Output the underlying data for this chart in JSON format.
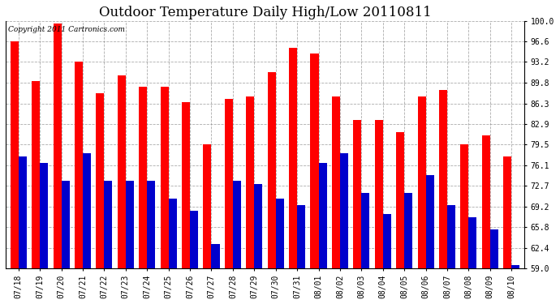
{
  "title": "Outdoor Temperature Daily High/Low 20110811",
  "copyright_text": "Copyright 2011 Cartronics.com",
  "dates": [
    "07/18",
    "07/19",
    "07/20",
    "07/21",
    "07/22",
    "07/23",
    "07/24",
    "07/25",
    "07/26",
    "07/27",
    "07/28",
    "07/29",
    "07/30",
    "07/31",
    "08/01",
    "08/02",
    "08/03",
    "08/04",
    "08/05",
    "08/06",
    "08/07",
    "08/08",
    "08/09",
    "08/10"
  ],
  "highs": [
    96.6,
    90.0,
    99.5,
    93.2,
    88.0,
    91.0,
    89.0,
    89.0,
    86.5,
    79.5,
    87.0,
    87.5,
    91.5,
    95.5,
    94.5,
    87.5,
    83.5,
    83.5,
    81.5,
    87.5,
    88.5,
    79.5,
    81.0,
    77.5
  ],
  "lows": [
    77.5,
    76.5,
    73.5,
    78.0,
    73.5,
    73.5,
    73.5,
    70.5,
    68.5,
    63.0,
    73.5,
    73.0,
    70.5,
    69.5,
    76.5,
    78.0,
    71.5,
    68.0,
    71.5,
    74.5,
    69.5,
    67.5,
    65.5,
    59.5
  ],
  "high_color": "#ff0000",
  "low_color": "#0000cc",
  "bg_color": "#ffffff",
  "plot_bg_color": "#ffffff",
  "grid_color": "#888888",
  "ymin": 59.0,
  "ymax": 100.0,
  "yticks": [
    59.0,
    62.4,
    65.8,
    69.2,
    72.7,
    76.1,
    79.5,
    82.9,
    86.3,
    89.8,
    93.2,
    96.6,
    100.0
  ],
  "bar_width": 0.38,
  "title_fontsize": 12,
  "tick_fontsize": 7,
  "copyright_fontsize": 6.5
}
